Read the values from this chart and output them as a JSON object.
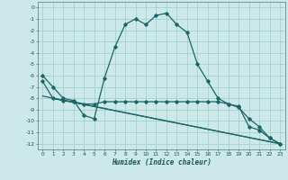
{
  "xlabel": "Humidex (Indice chaleur)",
  "bg_color": "#cce8e8",
  "grid_color": "#99cccc",
  "line_color": "#1a6666",
  "xlim": [
    -0.5,
    23.5
  ],
  "ylim": [
    -12.5,
    0.5
  ],
  "xticks": [
    0,
    1,
    2,
    3,
    4,
    5,
    6,
    7,
    8,
    9,
    10,
    11,
    12,
    13,
    14,
    15,
    16,
    17,
    18,
    19,
    20,
    21,
    22,
    23
  ],
  "yticks": [
    0,
    -1,
    -2,
    -3,
    -4,
    -5,
    -6,
    -7,
    -8,
    -9,
    -10,
    -11,
    -12
  ],
  "series_main": {
    "x": [
      0,
      1,
      2,
      3,
      4,
      5,
      6,
      7,
      8,
      9,
      10,
      11,
      12,
      13,
      14,
      15,
      16,
      17,
      18,
      19,
      20,
      21,
      22,
      23
    ],
    "y": [
      -6,
      -7,
      -8,
      -8.2,
      -9.5,
      -9.8,
      -6.2,
      -3.5,
      -1.5,
      -1.0,
      -1.5,
      -0.7,
      -0.5,
      -1.5,
      -2.2,
      -5.0,
      -6.5,
      -8.0,
      -8.5,
      -8.7,
      -10.5,
      -10.8,
      -11.5,
      -12.0
    ]
  },
  "series_flat": {
    "x": [
      0,
      1,
      2,
      3,
      4,
      5,
      6,
      7,
      8,
      9,
      10,
      11,
      12,
      13,
      14,
      15,
      16,
      17,
      18,
      19,
      20,
      21,
      22,
      23
    ],
    "y": [
      -6.5,
      -8.0,
      -8.2,
      -8.3,
      -8.5,
      -8.5,
      -8.3,
      -8.3,
      -8.3,
      -8.3,
      -8.3,
      -8.3,
      -8.3,
      -8.3,
      -8.3,
      -8.3,
      -8.3,
      -8.3,
      -8.5,
      -8.8,
      -9.8,
      -10.5,
      -11.5,
      -12.0
    ]
  },
  "series_diag1": {
    "x": [
      0,
      23
    ],
    "y": [
      -7.8,
      -12.0
    ]
  },
  "series_diag2": {
    "x": [
      1,
      23
    ],
    "y": [
      -8.0,
      -12.0
    ]
  }
}
